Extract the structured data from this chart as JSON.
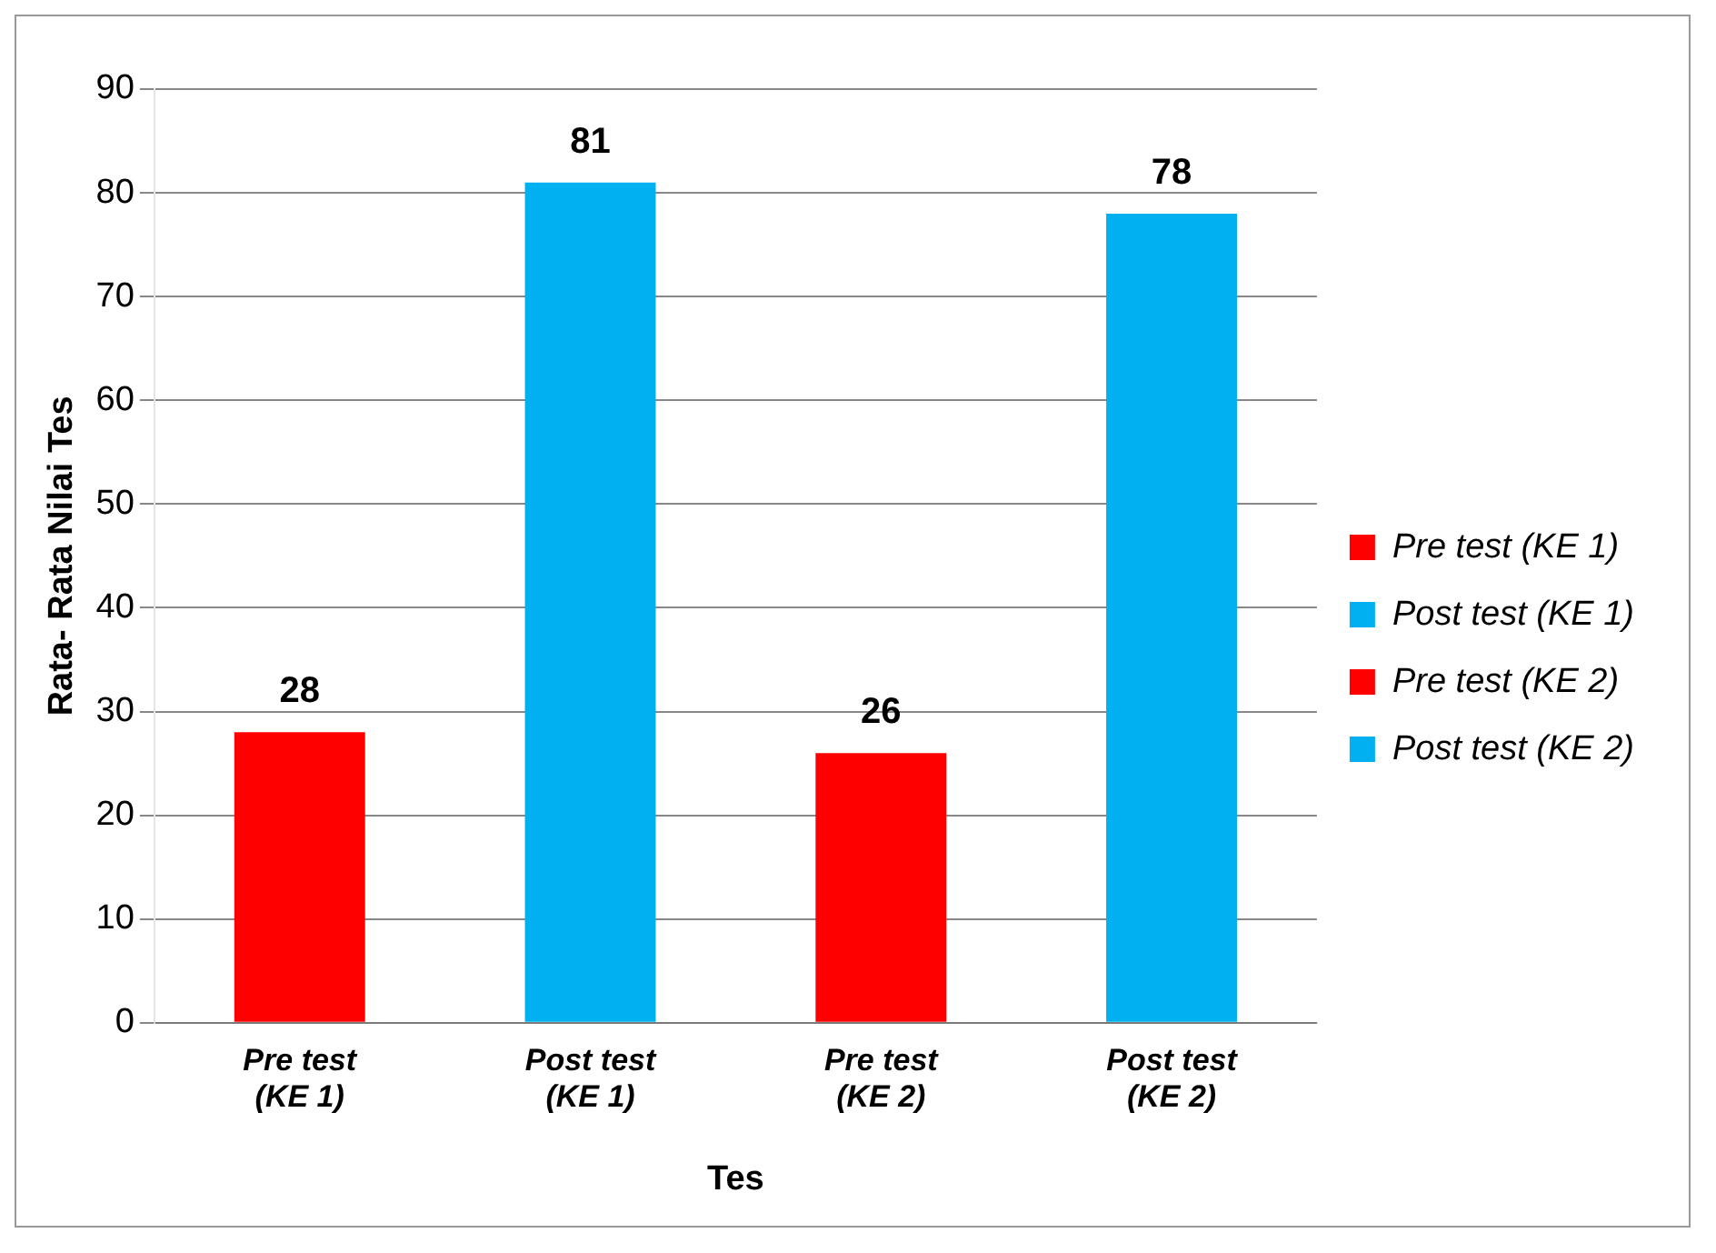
{
  "chart_data": {
    "type": "bar",
    "xlabel": "Tes",
    "ylabel": "Rata- Rata Nilai Tes",
    "categories": [
      "Pre test (KE 1)",
      "Post test (KE 1)",
      "Pre test (KE 2)",
      "Post test (KE 2)"
    ],
    "series": [
      {
        "name": "Pre test (KE 1)",
        "color": "#ff0000",
        "values": [
          28,
          null,
          null,
          null
        ]
      },
      {
        "name": "Post test (KE 1)",
        "color": "#00b0f0",
        "values": [
          null,
          81,
          null,
          null
        ]
      },
      {
        "name": "Pre test (KE 2)",
        "color": "#ff0000",
        "values": [
          null,
          null,
          26,
          null
        ]
      },
      {
        "name": "Post test (KE 2)",
        "color": "#00b0f0",
        "values": [
          null,
          null,
          null,
          78
        ]
      }
    ],
    "ylim": [
      0,
      90
    ],
    "yticks": [
      0,
      10,
      20,
      30,
      40,
      50,
      60,
      70,
      80,
      90
    ],
    "grid": "y",
    "legend": "right",
    "data_labels": true
  }
}
